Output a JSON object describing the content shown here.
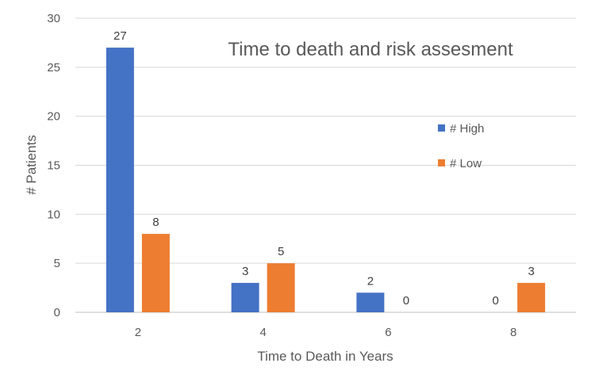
{
  "chart_data": {
    "type": "bar",
    "title": "Time to death and risk assesment",
    "xlabel": "Time to Death in Years",
    "ylabel": "# Patients",
    "categories": [
      "2",
      "4",
      "6",
      "8"
    ],
    "series": [
      {
        "name": "# High",
        "values": [
          27,
          3,
          2,
          0
        ],
        "color": "#4472C4"
      },
      {
        "name": "# Low",
        "values": [
          8,
          5,
          0,
          3
        ],
        "color": "#ED7D31"
      }
    ],
    "ylim": [
      0,
      30
    ],
    "yticks": [
      "0",
      "5",
      "10",
      "15",
      "20",
      "25",
      "30"
    ],
    "grid": true,
    "legend_position": "right",
    "data_labels": true
  }
}
